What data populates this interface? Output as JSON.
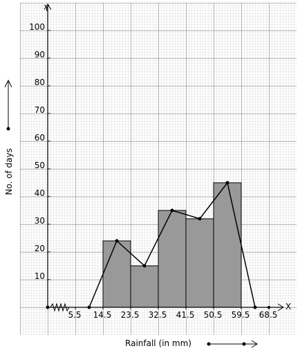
{
  "chart_data": {
    "type": "histogram",
    "y_label": "Y",
    "x_label": "X",
    "ylabel": "No. of days",
    "xlabel": "Rainfall (in mm)",
    "bins": [
      14.5,
      23.5,
      32.5,
      41.5,
      50.5,
      59.5
    ],
    "counts": [
      24,
      15,
      35,
      32,
      45
    ],
    "color": "#999999",
    "line": {
      "x": [
        10,
        19,
        28,
        37,
        46,
        55,
        64
      ],
      "values": [
        0,
        24,
        15,
        35,
        32,
        45,
        0
      ],
      "color": "#000000"
    },
    "xlim": [
      -3.5,
      73
    ],
    "xticks": [
      5.5,
      14.5,
      23.5,
      32.5,
      41.5,
      50.5,
      59.5,
      68.5
    ],
    "ylim": [
      0,
      110
    ],
    "yticks": [
      10,
      20,
      30,
      40,
      50,
      60,
      70,
      80,
      90,
      100
    ],
    "grid": true
  }
}
